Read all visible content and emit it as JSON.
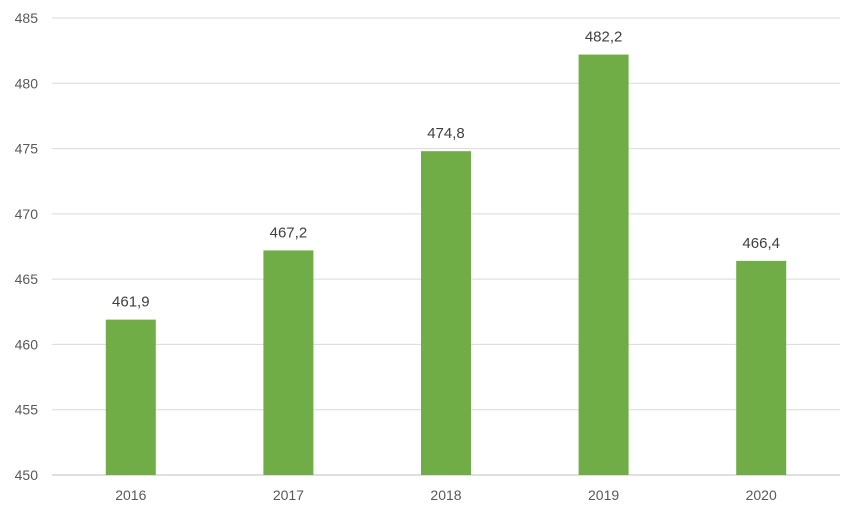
{
  "chart_data": {
    "type": "bar",
    "title": "",
    "xlabel": "",
    "ylabel": "",
    "categories": [
      "2016",
      "2017",
      "2018",
      "2019",
      "2020"
    ],
    "values": [
      461.9,
      467.2,
      474.8,
      482.2,
      466.4
    ],
    "data_labels": [
      "461,9",
      "467,2",
      "474,8",
      "482,2",
      "466,4"
    ],
    "ylim": [
      450,
      485
    ],
    "yticks": [
      450,
      455,
      460,
      465,
      470,
      475,
      480,
      485
    ],
    "ytick_labels": [
      "450",
      "455",
      "460",
      "465",
      "470",
      "475",
      "480",
      "485"
    ],
    "grid": true,
    "legend": "none",
    "bar_color": "#70ad47"
  }
}
